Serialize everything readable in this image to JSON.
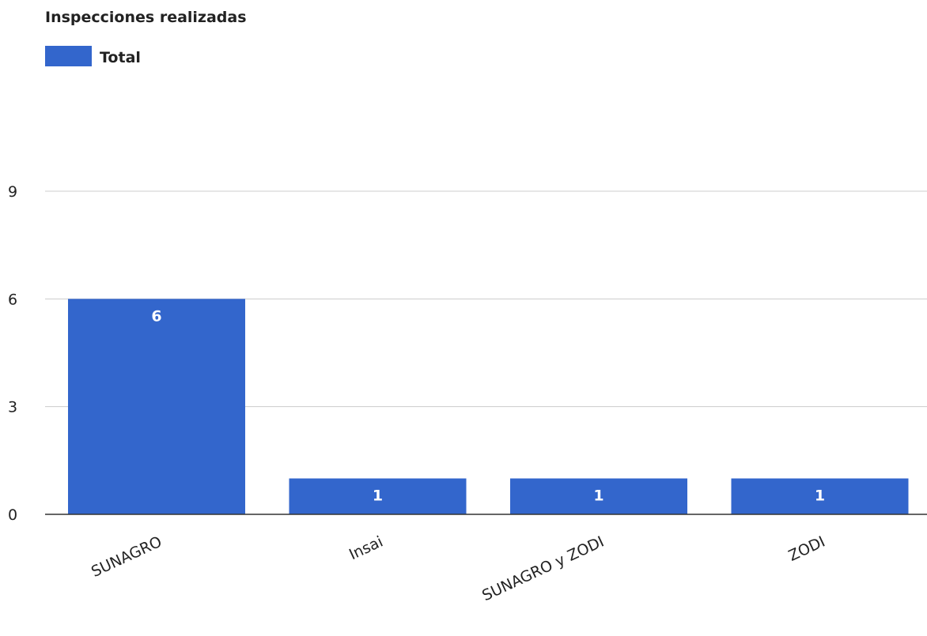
{
  "chart_data": {
    "type": "bar",
    "title": "Inspecciones realizadas",
    "xlabel": "",
    "ylabel": "",
    "categories": [
      "SUNAGRO",
      "Insai",
      "SUNAGRO y ZODI",
      "ZODI"
    ],
    "series": [
      {
        "name": "Total",
        "values": [
          6,
          1,
          1,
          1
        ],
        "color": "#3366cc"
      }
    ],
    "ylim": [
      0,
      9
    ],
    "yticks": [
      "0",
      "3",
      "6",
      "9"
    ],
    "grid": true,
    "legend_position": "top-left",
    "data_labels": [
      "6",
      "1",
      "1",
      "1"
    ]
  }
}
